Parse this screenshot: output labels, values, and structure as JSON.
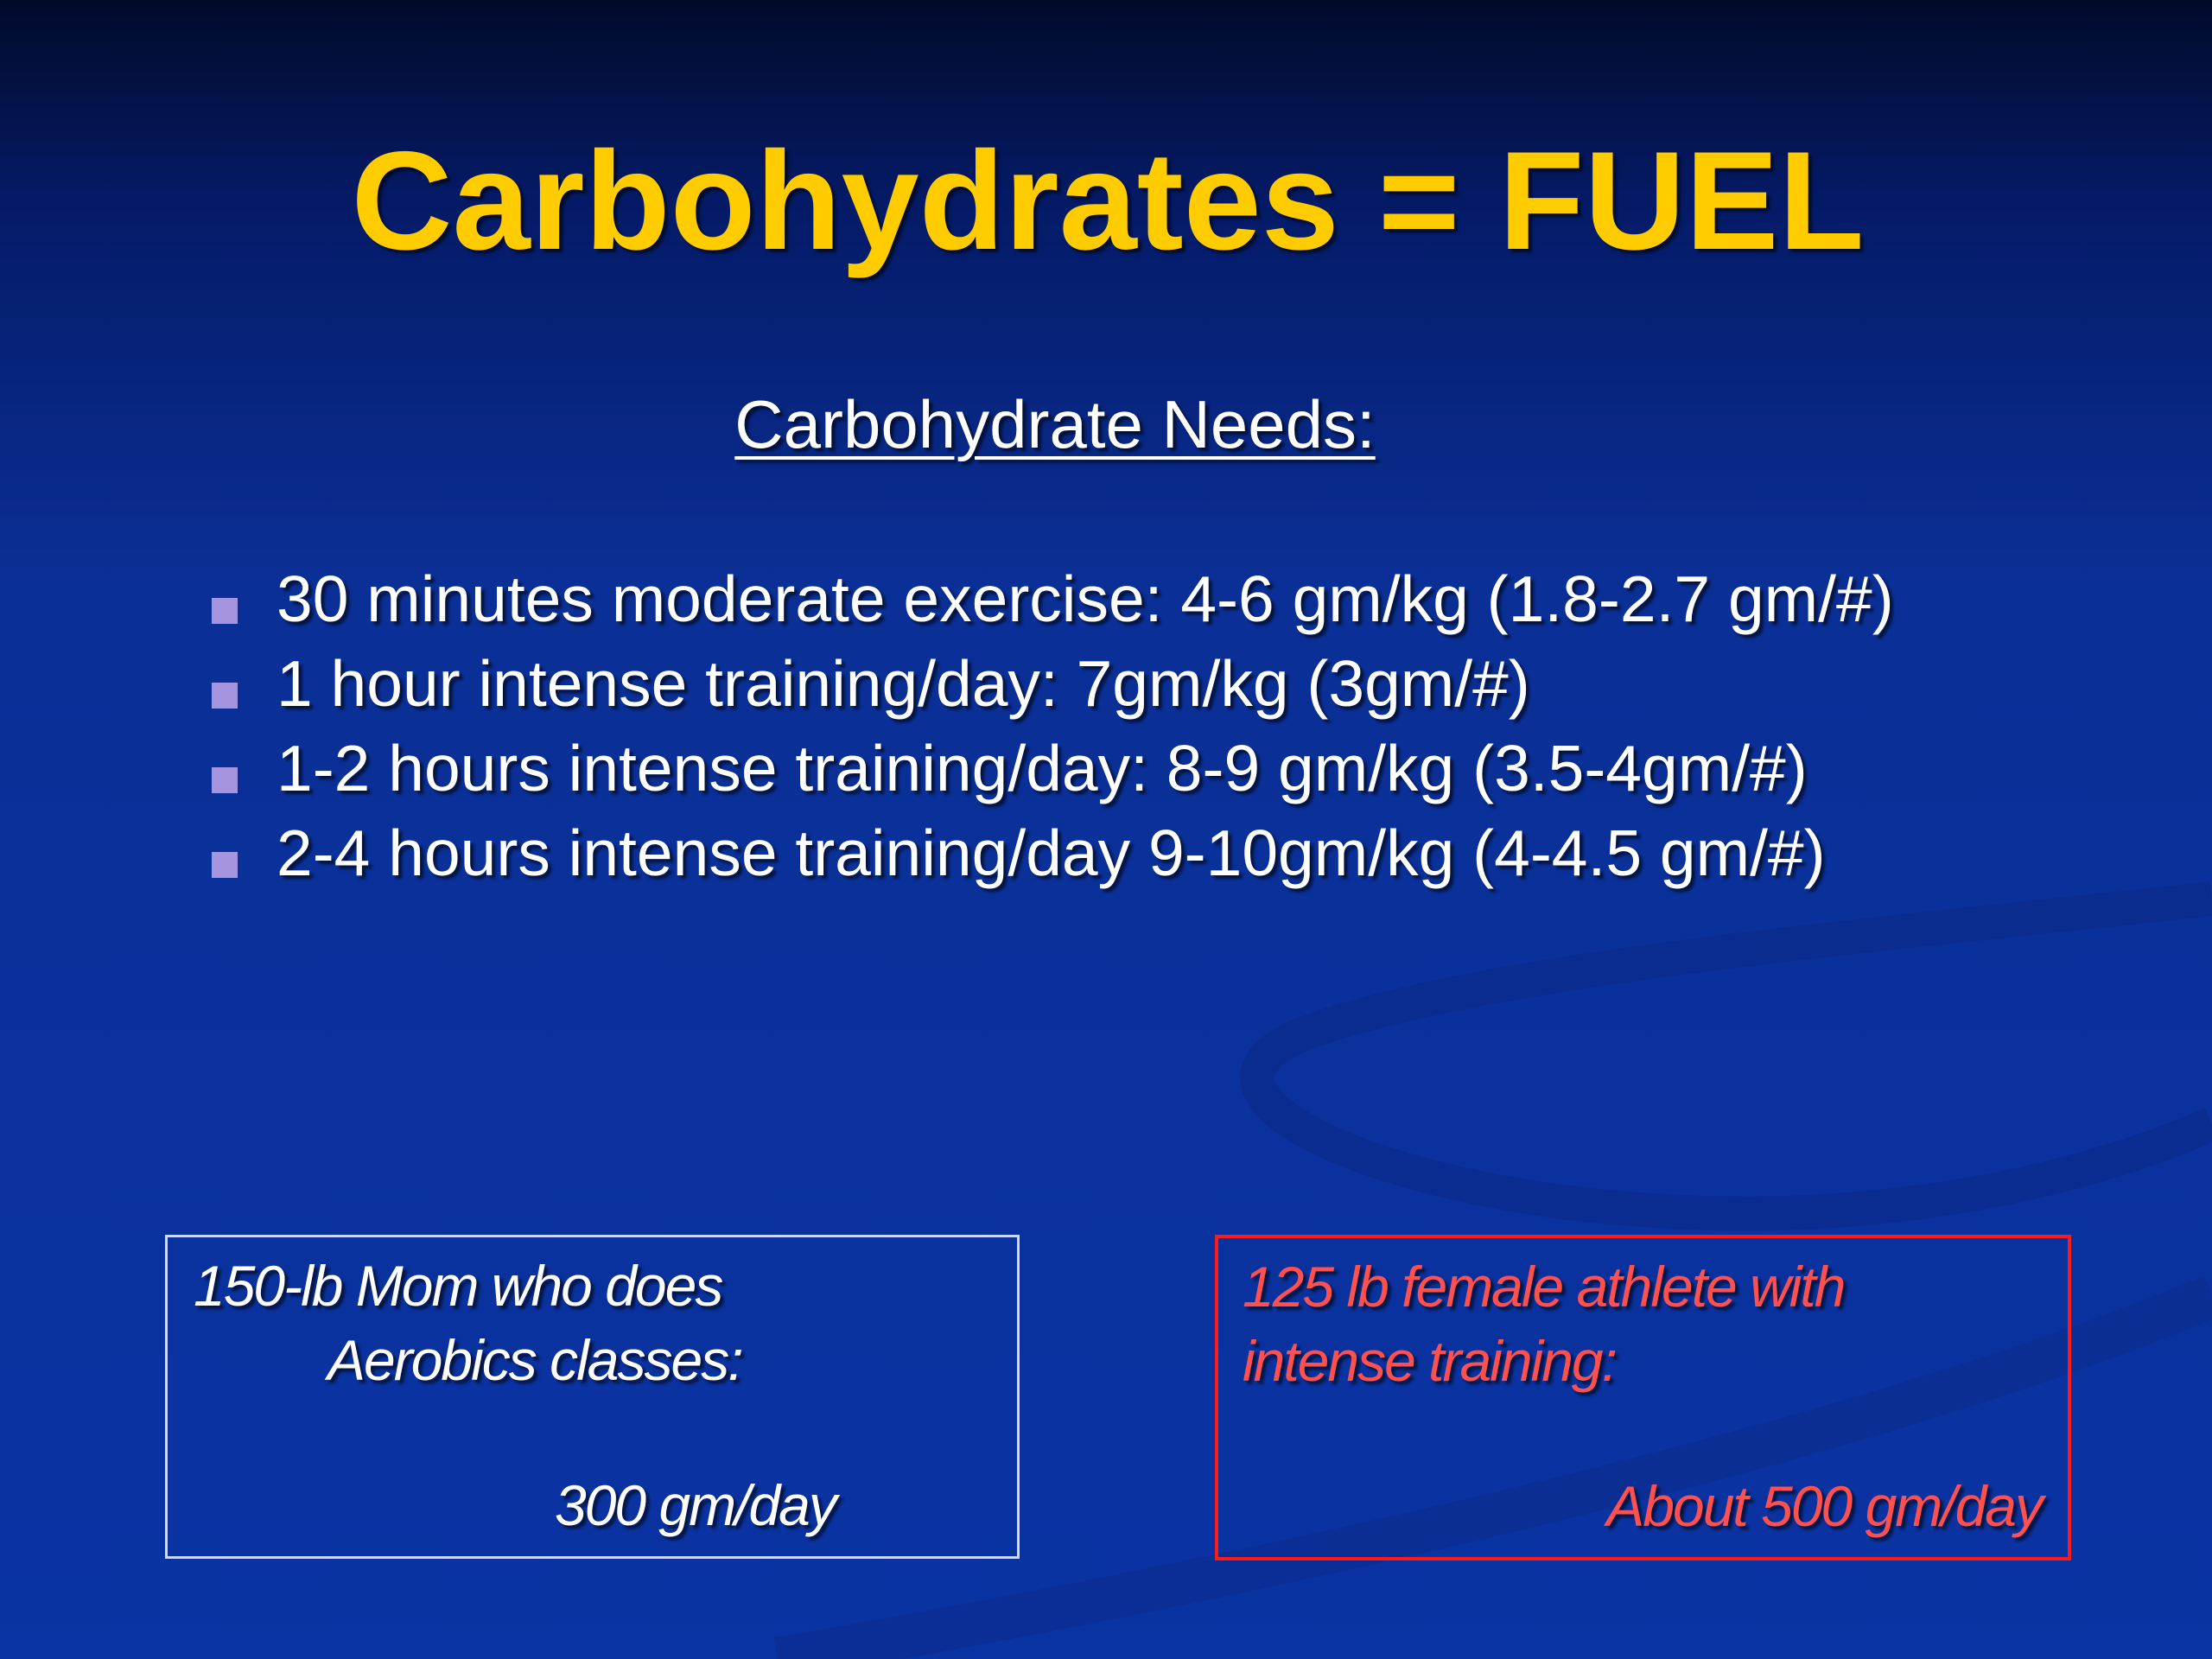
{
  "title": "Carbohydrates = FUEL",
  "subtitle": "Carbohydrate Needs:",
  "bullets": [
    "30 minutes moderate exercise: 4-6 gm/kg (1.8-2.7 gm/#)",
    "1 hour intense training/day: 7gm/kg (3gm/#)",
    "1-2 hours intense training/day: 8-9 gm/kg (3.5-4gm/#)",
    "2-4 hours intense training/day 9-10gm/kg (4-4.5 gm/#)"
  ],
  "boxes": [
    {
      "lines": [
        "150-lb Mom who does",
        "Aerobics classes:"
      ],
      "amount": "300 gm/day"
    },
    {
      "lines": [
        "125 lb female athlete with",
        "intense training:"
      ],
      "amount": "About 500 gm/day"
    }
  ]
}
